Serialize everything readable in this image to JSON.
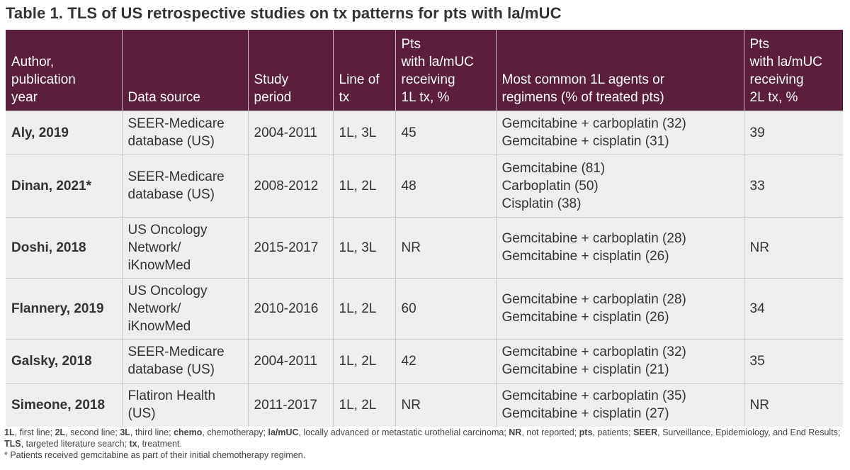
{
  "title": "Table 1. TLS of US retrospective studies on tx patterns for pts with la/mUC",
  "table": {
    "headers": [
      "Author,\npublication\nyear",
      "Data source",
      "Study\nperiod",
      "Line of\ntx",
      "Pts\nwith la/mUC\nreceiving\n1L tx, %",
      "Most common 1L agents or\nregimens (% of treated pts)",
      "Pts\nwith la/mUC\nreceiving\n2L tx, %"
    ],
    "rows": [
      [
        "Aly, 2019",
        "SEER-Medicare\ndatabase (US)",
        "2004-2011",
        "1L, 3L",
        "45",
        "Gemcitabine + carboplatin (32)\nGemcitabine + cisplatin (31)",
        "39"
      ],
      [
        "Dinan, 2021*",
        "SEER-Medicare\ndatabase (US)",
        "2008-2012",
        "1L, 2L",
        "48",
        "Gemcitabine (81)\nCarboplatin (50)\nCisplatin (38)",
        "33"
      ],
      [
        "Doshi, 2018",
        "US Oncology\nNetwork/\niKnowMed",
        "2015-2017",
        "1L, 3L",
        "NR",
        "Gemcitabine + carboplatin (28)\nGemcitabine + cisplatin (26)",
        "NR"
      ],
      [
        "Flannery, 2019",
        "US Oncology\nNetwork/\niKnowMed",
        "2010-2016",
        "1L, 2L",
        "60",
        "Gemcitabine + carboplatin (28)\nGemcitabine + cisplatin (26)",
        "34"
      ],
      [
        "Galsky, 2018",
        "SEER-Medicare\ndatabase (US)",
        "2004-2011",
        "1L, 2L",
        "42",
        "Gemcitabine + carboplatin (32)\nGemcitabine + cisplatin (21)",
        "35"
      ],
      [
        "Simeone, 2018",
        "Flatiron Health\n(US)",
        "2011-2017",
        "1L, 2L",
        "NR",
        "Gemcitabine + carboplatin (35)\nGemcitabine + cisplatin (27)",
        "NR"
      ]
    ]
  },
  "abbreviations": [
    {
      "term": "1L",
      "def": "first line"
    },
    {
      "term": "2L",
      "def": "second line"
    },
    {
      "term": "3L",
      "def": "third line"
    },
    {
      "term": "chemo",
      "def": "chemotherapy"
    },
    {
      "term": "la/mUC",
      "def": "locally advanced or metastatic urothelial carcinoma"
    },
    {
      "term": "NR",
      "def": "not reported"
    },
    {
      "term": "pts",
      "def": "patients"
    },
    {
      "term": "SEER",
      "def": "Surveillance, Epidemiology, and End Results"
    },
    {
      "term": "TLS",
      "def": "targeted literature search"
    },
    {
      "term": "tx",
      "def": "treatment"
    }
  ],
  "footnote": "* Patients received gemcitabine as part of their initial chemotherapy regimen.",
  "colors": {
    "header_bg": "#5b1f3b",
    "row_bg": "#eeeeef",
    "border": "#c9c9c9"
  }
}
